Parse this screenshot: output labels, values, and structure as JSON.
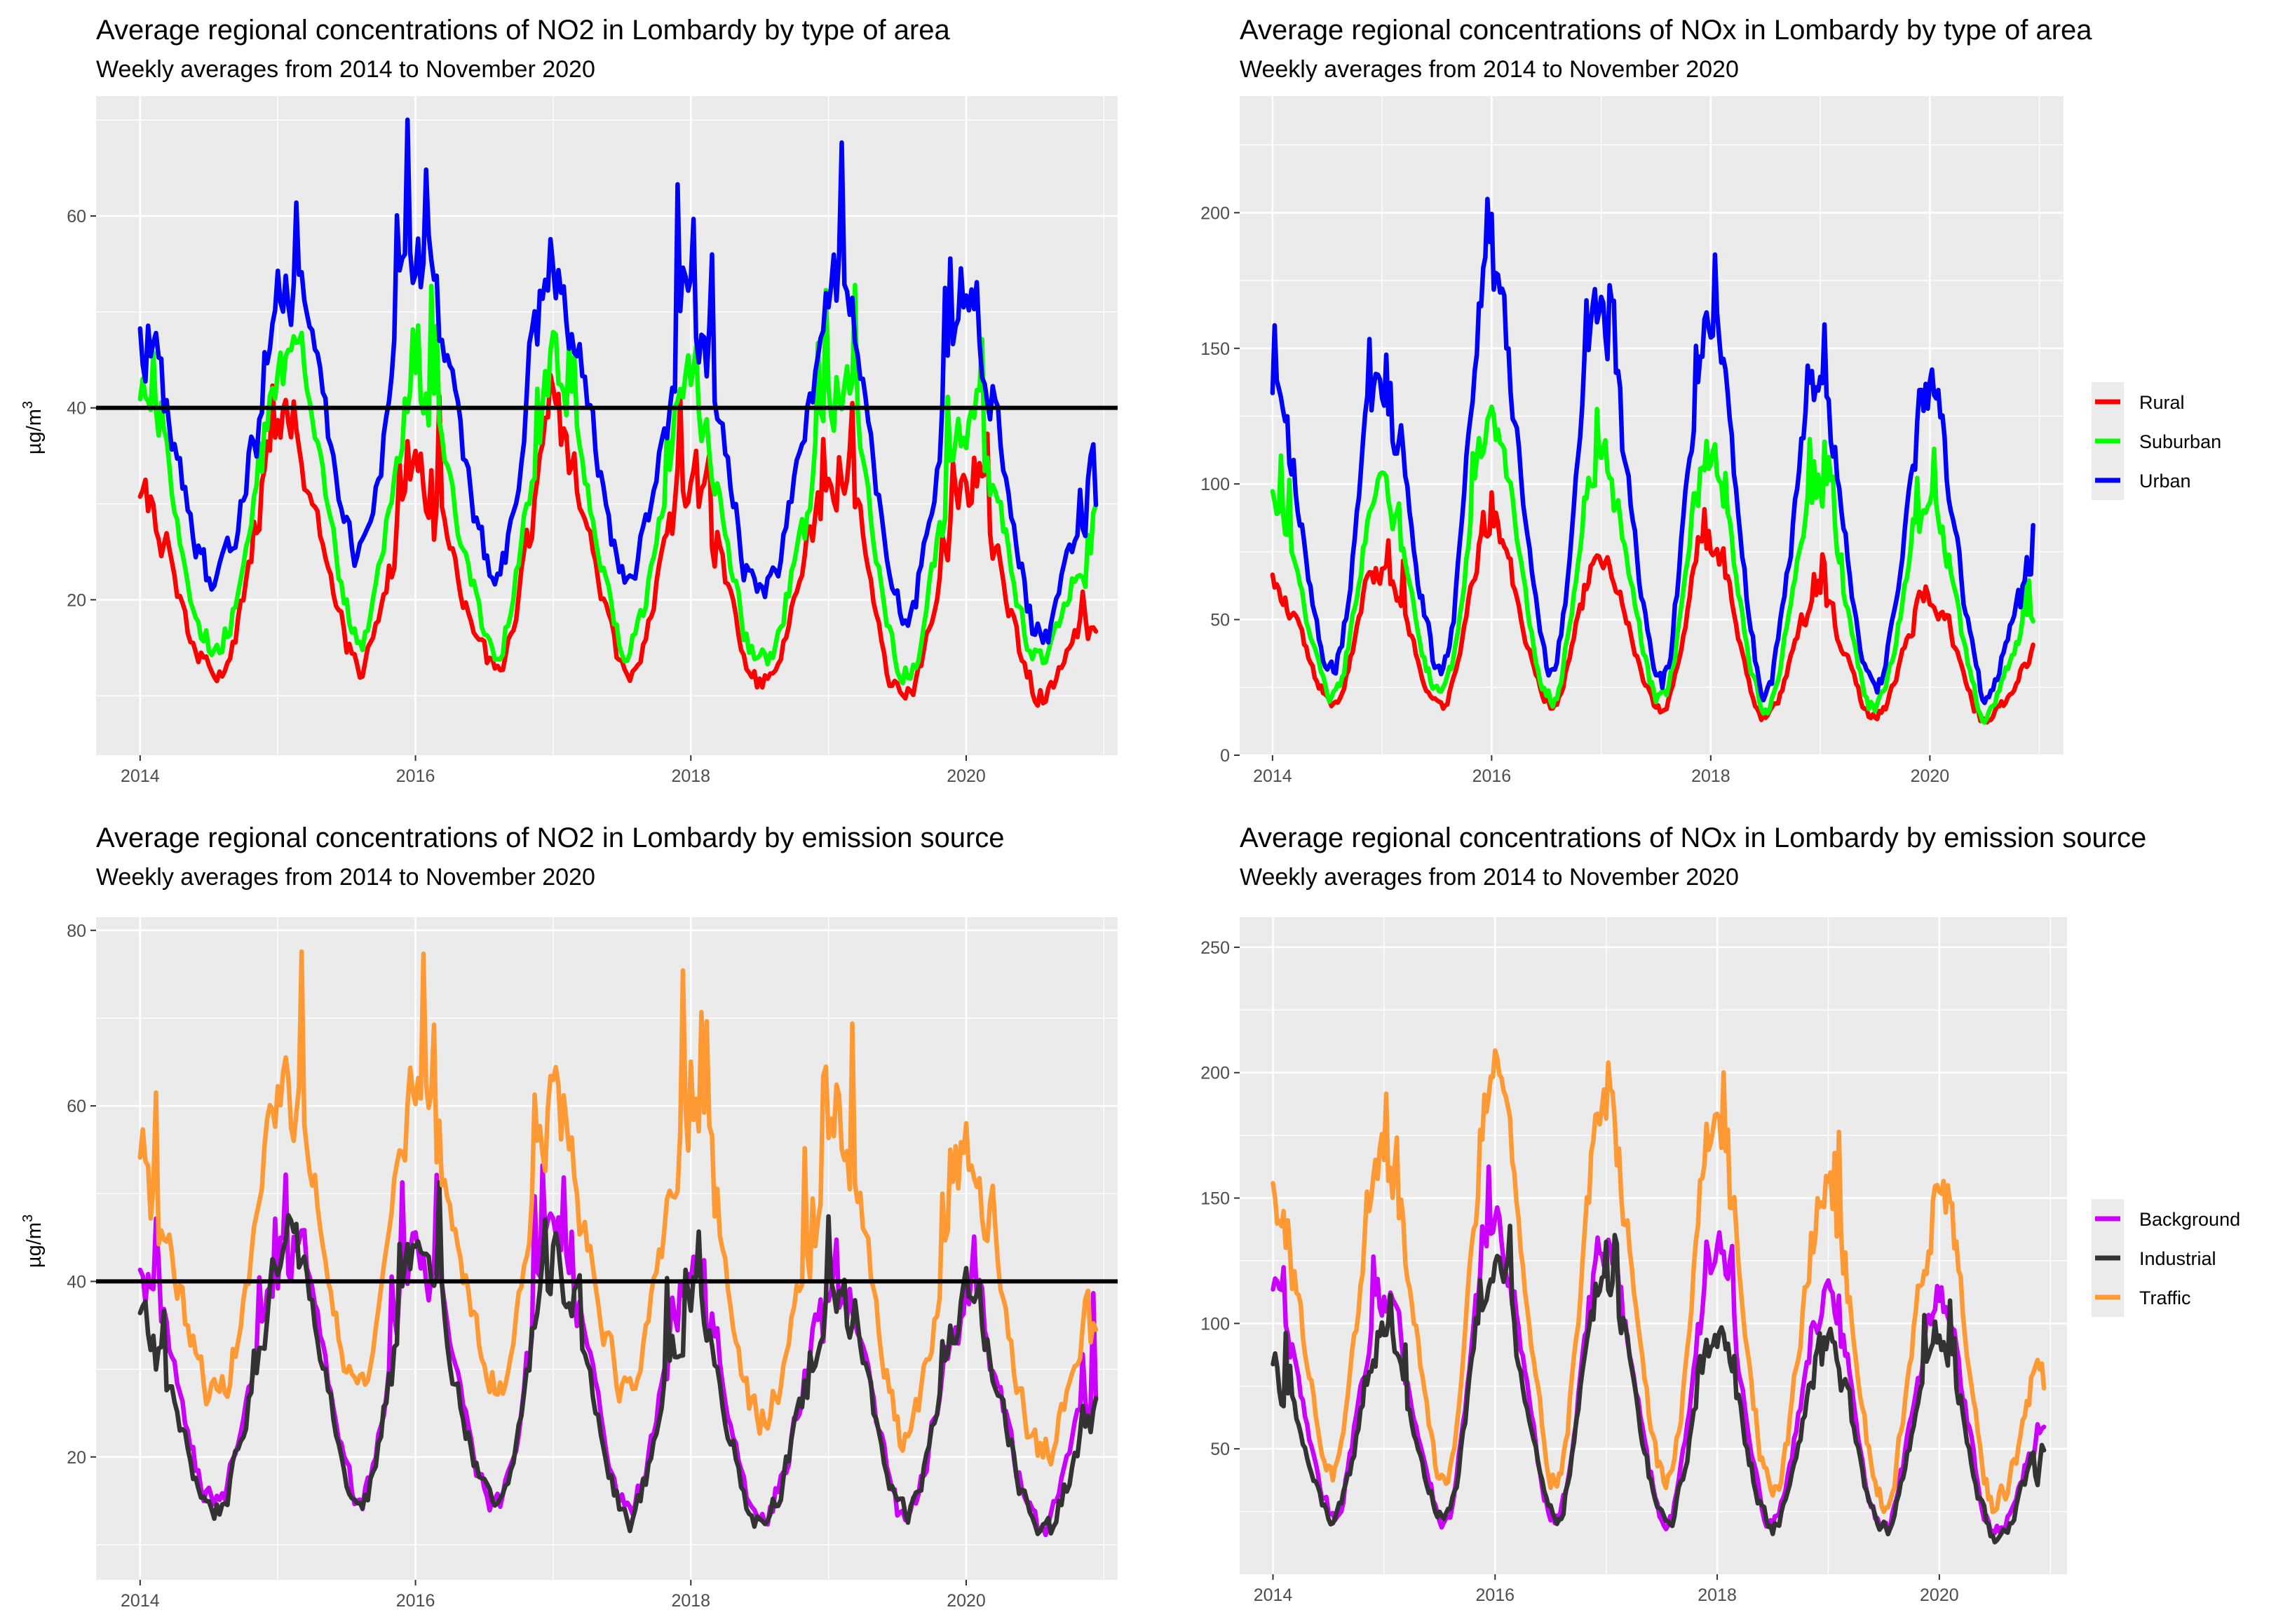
{
  "chart_data": [
    {
      "type": "line",
      "title": "Average regional concentrations of NO2 in Lombardy by type of area",
      "subtitle": "Weekly averages from 2014 to November 2020",
      "ylabel": "µg/m",
      "ylabel_sup": "3",
      "xlim": [
        2013.68,
        2021.1
      ],
      "ylim": [
        3.8,
        72.5
      ],
      "xticks": [
        2014,
        2016,
        2018,
        2020
      ],
      "yticks": [
        20,
        40,
        60
      ],
      "hline": 40,
      "legend": null,
      "series": [
        {
          "name": "Rural",
          "color": "#ff0000",
          "period": 0,
          "peaks": [
            [
              2014.0,
              30
            ],
            [
              2015.08,
              38
            ],
            [
              2016.0,
              32
            ],
            [
              2017.0,
              38
            ],
            [
              2018.0,
              33
            ],
            [
              2019.1,
              34
            ],
            [
              2020.02,
              33
            ],
            [
              2020.95,
              19
            ]
          ],
          "troughs": [
            [
              2014.55,
              12
            ],
            [
              2015.6,
              13
            ],
            [
              2016.6,
              13
            ],
            [
              2017.55,
              13
            ],
            [
              2018.5,
              11
            ],
            [
              2019.55,
              9
            ],
            [
              2020.55,
              10
            ]
          ],
          "noise": 3.2
        },
        {
          "name": "Suburban",
          "color": "#00ff00",
          "period": 0,
          "peaks": [
            [
              2014.0,
              40
            ],
            [
              2015.1,
              46
            ],
            [
              2016.0,
              43
            ],
            [
              2017.0,
              44
            ],
            [
              2018.0,
              42
            ],
            [
              2019.1,
              42
            ],
            [
              2020.03,
              40
            ],
            [
              2020.95,
              27
            ]
          ],
          "troughs": [
            [
              2014.55,
              15
            ],
            [
              2015.6,
              16
            ],
            [
              2016.6,
              15
            ],
            [
              2017.55,
              15
            ],
            [
              2018.5,
              13
            ],
            [
              2019.55,
              12
            ],
            [
              2020.55,
              13
            ]
          ],
          "noise": 3.5
        },
        {
          "name": "Urban",
          "color": "#0000ff",
          "period": 0,
          "peaks": [
            [
              2014.0,
              47
            ],
            [
              2015.1,
              54
            ],
            [
              2016.0,
              56
            ],
            [
              2017.0,
              56
            ],
            [
              2018.0,
              52
            ],
            [
              2019.1,
              52
            ],
            [
              2020.03,
              50
            ],
            [
              2020.95,
              33
            ]
          ],
          "troughs": [
            [
              2014.55,
              22
            ],
            [
              2015.6,
              24
            ],
            [
              2016.6,
              23
            ],
            [
              2017.55,
              22
            ],
            [
              2018.5,
              20
            ],
            [
              2019.55,
              18
            ],
            [
              2020.55,
              16
            ]
          ],
          "noise": 4.5
        }
      ]
    },
    {
      "type": "line",
      "title": "Average regional concentrations of NOx in Lombardy by type of area",
      "subtitle": "Weekly averages from 2014 to November 2020",
      "ylabel": "",
      "ylabel_sup": "",
      "xlim": [
        2013.7,
        2021.22
      ],
      "ylim": [
        0,
        243
      ],
      "xticks": [
        2014,
        2016,
        2018,
        2020
      ],
      "yticks": [
        0,
        50,
        100,
        150,
        200
      ],
      "hline": null,
      "legend": "right",
      "series": [
        {
          "name": "Rural",
          "color": "#ff0000",
          "period": 1,
          "peaks": [
            [
              2014.0,
              65
            ],
            [
              2014.98,
              70
            ],
            [
              2015.98,
              85
            ],
            [
              2016.98,
              75
            ],
            [
              2017.98,
              78
            ],
            [
              2018.98,
              60
            ],
            [
              2020.0,
              60
            ],
            [
              2020.95,
              32
            ]
          ],
          "troughs": [
            [
              2014.55,
              20
            ],
            [
              2015.55,
              18
            ],
            [
              2016.55,
              18
            ],
            [
              2017.55,
              17
            ],
            [
              2018.5,
              14
            ],
            [
              2019.5,
              14
            ],
            [
              2020.5,
              13
            ]
          ],
          "noise": 5
        },
        {
          "name": "Suburban",
          "color": "#00ff00",
          "period": 1,
          "peaks": [
            [
              2014.0,
              95
            ],
            [
              2014.98,
              95
            ],
            [
              2015.98,
              120
            ],
            [
              2016.98,
              110
            ],
            [
              2017.98,
              110
            ],
            [
              2018.98,
              100
            ],
            [
              2020.0,
              95
            ],
            [
              2020.95,
              52
            ]
          ],
          "troughs": [
            [
              2014.55,
              22
            ],
            [
              2015.55,
              22
            ],
            [
              2016.55,
              21
            ],
            [
              2017.55,
              20
            ],
            [
              2018.5,
              17
            ],
            [
              2019.5,
              17
            ],
            [
              2020.5,
              15
            ]
          ],
          "noise": 7
        },
        {
          "name": "Urban",
          "color": "#0000ff",
          "period": 1,
          "peaks": [
            [
              2014.0,
              130
            ],
            [
              2014.98,
              140
            ],
            [
              2015.98,
              180
            ],
            [
              2016.98,
              165
            ],
            [
              2017.98,
              160
            ],
            [
              2018.98,
              135
            ],
            [
              2020.0,
              135
            ],
            [
              2020.95,
              70
            ]
          ],
          "troughs": [
            [
              2014.55,
              32
            ],
            [
              2015.55,
              30
            ],
            [
              2016.55,
              30
            ],
            [
              2017.55,
              27
            ],
            [
              2018.5,
              24
            ],
            [
              2019.5,
              22
            ],
            [
              2020.5,
              22
            ]
          ],
          "noise": 10
        }
      ]
    },
    {
      "type": "line",
      "title": "Average regional concentrations of NO2 in Lombardy by emission source",
      "subtitle": "Weekly averages from 2014 to November 2020",
      "ylabel": "µg/m",
      "ylabel_sup": "3",
      "xlim": [
        2013.68,
        2021.1
      ],
      "ylim": [
        6,
        81.5
      ],
      "xticks": [
        2014,
        2016,
        2018,
        2020
      ],
      "yticks": [
        20,
        40,
        60,
        80
      ],
      "hline": 40,
      "legend": null,
      "series": [
        {
          "name": "Background",
          "color": "#cc00ff",
          "period": 0,
          "peaks": [
            [
              2014.0,
              40
            ],
            [
              2015.1,
              45
            ],
            [
              2016.0,
              44
            ],
            [
              2017.0,
              46
            ],
            [
              2018.0,
              40
            ],
            [
              2019.1,
              40
            ],
            [
              2020.02,
              38
            ],
            [
              2020.95,
              28
            ]
          ],
          "troughs": [
            [
              2014.55,
              15
            ],
            [
              2015.6,
              15
            ],
            [
              2016.6,
              14
            ],
            [
              2017.55,
              14
            ],
            [
              2018.5,
              13
            ],
            [
              2019.55,
              13
            ],
            [
              2020.55,
              12
            ]
          ],
          "noise": 3.5
        },
        {
          "name": "Industrial",
          "color": "#333333",
          "period": 0,
          "peaks": [
            [
              2014.0,
              35
            ],
            [
              2015.1,
              44
            ],
            [
              2016.0,
              42
            ],
            [
              2017.0,
              43
            ],
            [
              2018.0,
              38
            ],
            [
              2019.1,
              38
            ],
            [
              2020.02,
              38
            ],
            [
              2020.95,
              24
            ]
          ],
          "troughs": [
            [
              2014.55,
              14
            ],
            [
              2015.6,
              14
            ],
            [
              2016.6,
              14
            ],
            [
              2017.55,
              13
            ],
            [
              2018.5,
              13
            ],
            [
              2019.55,
              13
            ],
            [
              2020.55,
              11
            ]
          ],
          "noise": 3.5
        },
        {
          "name": "Traffic",
          "color": "#ff9933",
          "period": 0,
          "peaks": [
            [
              2014.0,
              52
            ],
            [
              2015.1,
              60
            ],
            [
              2016.0,
              62
            ],
            [
              2017.0,
              60
            ],
            [
              2018.0,
              58
            ],
            [
              2019.1,
              56
            ],
            [
              2020.03,
              54
            ],
            [
              2020.95,
              36
            ]
          ],
          "troughs": [
            [
              2014.55,
              27
            ],
            [
              2015.6,
              28
            ],
            [
              2016.6,
              28
            ],
            [
              2017.55,
              27
            ],
            [
              2018.5,
              24
            ],
            [
              2019.55,
              22
            ],
            [
              2020.55,
              20
            ]
          ],
          "noise": 5
        }
      ]
    },
    {
      "type": "line",
      "title": "Average regional concentrations of NOx in Lombardy by emission source",
      "subtitle": "Weekly averages from 2014 to November 2020",
      "ylabel": "",
      "ylabel_sup": "",
      "xlim": [
        2013.7,
        2021.15
      ],
      "ylim": [
        0,
        262
      ],
      "xticks": [
        2014,
        2016,
        2018,
        2020
      ],
      "yticks": [
        50,
        100,
        150,
        200,
        250
      ],
      "hline": null,
      "legend": "right",
      "series": [
        {
          "name": "Background",
          "color": "#cc00ff",
          "period": 1,
          "peaks": [
            [
              2014.0,
              110
            ],
            [
              2014.98,
              110
            ],
            [
              2015.98,
              140
            ],
            [
              2016.98,
              130
            ],
            [
              2017.98,
              125
            ],
            [
              2018.98,
              110
            ],
            [
              2020.0,
              110
            ],
            [
              2020.95,
              55
            ]
          ],
          "troughs": [
            [
              2014.55,
              24
            ],
            [
              2015.55,
              22
            ],
            [
              2016.55,
              22
            ],
            [
              2017.55,
              21
            ],
            [
              2018.5,
              20
            ],
            [
              2019.5,
              18
            ],
            [
              2020.5,
              17
            ]
          ],
          "noise": 8
        },
        {
          "name": "Industrial",
          "color": "#333333",
          "period": 1,
          "peaks": [
            [
              2014.0,
              80
            ],
            [
              2014.98,
              95
            ],
            [
              2015.98,
              125
            ],
            [
              2016.98,
              120
            ],
            [
              2017.98,
              95
            ],
            [
              2018.98,
              90
            ],
            [
              2020.0,
              95
            ],
            [
              2020.95,
              47
            ]
          ],
          "troughs": [
            [
              2014.55,
              22
            ],
            [
              2015.55,
              22
            ],
            [
              2016.55,
              22
            ],
            [
              2017.55,
              20
            ],
            [
              2018.5,
              19
            ],
            [
              2019.5,
              17
            ],
            [
              2020.5,
              15
            ]
          ],
          "noise": 8
        },
        {
          "name": "Traffic",
          "color": "#ff9933",
          "period": 1,
          "peaks": [
            [
              2014.0,
              150
            ],
            [
              2014.98,
              170
            ],
            [
              2015.98,
              200
            ],
            [
              2016.98,
              185
            ],
            [
              2017.98,
              180
            ],
            [
              2018.98,
              150
            ],
            [
              2020.0,
              150
            ],
            [
              2020.95,
              78
            ]
          ],
          "troughs": [
            [
              2014.55,
              40
            ],
            [
              2015.55,
              38
            ],
            [
              2016.55,
              38
            ],
            [
              2017.55,
              36
            ],
            [
              2018.5,
              32
            ],
            [
              2019.5,
              30
            ],
            [
              2020.5,
              28
            ]
          ],
          "noise": 12
        }
      ]
    }
  ]
}
